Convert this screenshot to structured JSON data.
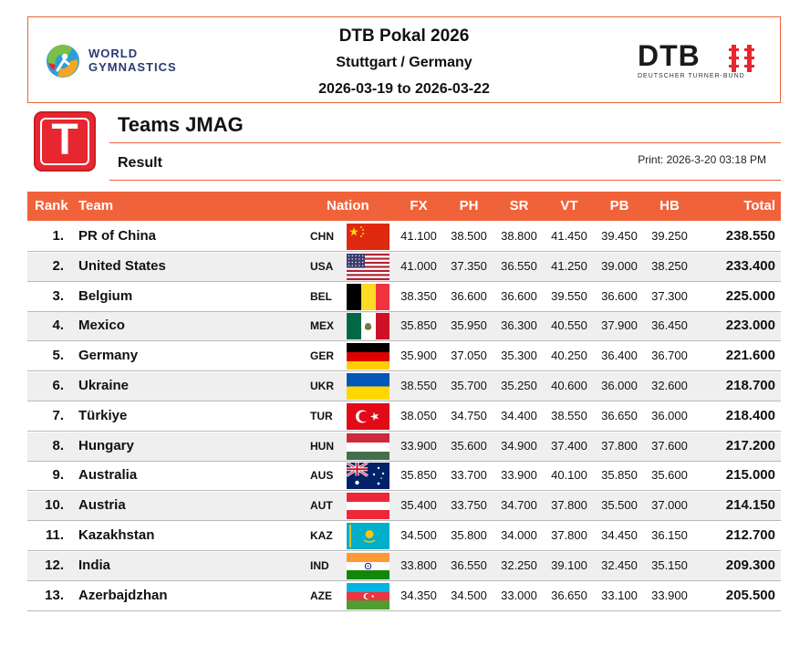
{
  "header": {
    "organizer_logo_text_line1": "WORLD",
    "organizer_logo_text_line2": "GYMNASTICS",
    "event_name": "DTB Pokal 2026",
    "event_place": "Stuttgart / Germany",
    "event_dates": "2026-03-19 to 2026-03-22",
    "federation_logo_word": "DTB",
    "federation_logo_sub": "DEUTSCHER TURNER-BUND"
  },
  "section": {
    "badge_letter": "T",
    "title": "Teams JMAG",
    "subtitle": "Result",
    "print_info": "Print: 2026-3-20 03:18 PM"
  },
  "colors": {
    "accent": "#f0633a",
    "badge_red": "#e8262f",
    "row_alt": "#efefef"
  },
  "table": {
    "columns": {
      "rank": "Rank",
      "team": "Team",
      "nation": "Nation",
      "fx": "FX",
      "ph": "PH",
      "sr": "SR",
      "vt": "VT",
      "pb": "PB",
      "hb": "HB",
      "total": "Total"
    },
    "rows": [
      {
        "rank": "1.",
        "team": "PR of China",
        "noc": "CHN",
        "flag": "china-flag",
        "fx": "41.100",
        "ph": "38.500",
        "sr": "38.800",
        "vt": "41.450",
        "pb": "39.450",
        "hb": "39.250",
        "total": "238.550"
      },
      {
        "rank": "2.",
        "team": "United States",
        "noc": "USA",
        "flag": "usa-flag",
        "fx": "41.000",
        "ph": "37.350",
        "sr": "36.550",
        "vt": "41.250",
        "pb": "39.000",
        "hb": "38.250",
        "total": "233.400"
      },
      {
        "rank": "3.",
        "team": "Belgium",
        "noc": "BEL",
        "flag": "belgium-flag",
        "fx": "38.350",
        "ph": "36.600",
        "sr": "36.600",
        "vt": "39.550",
        "pb": "36.600",
        "hb": "37.300",
        "total": "225.000"
      },
      {
        "rank": "4.",
        "team": "Mexico",
        "noc": "MEX",
        "flag": "mexico-flag",
        "fx": "35.850",
        "ph": "35.950",
        "sr": "36.300",
        "vt": "40.550",
        "pb": "37.900",
        "hb": "36.450",
        "total": "223.000"
      },
      {
        "rank": "5.",
        "team": "Germany",
        "noc": "GER",
        "flag": "germany-flag",
        "fx": "35.900",
        "ph": "37.050",
        "sr": "35.300",
        "vt": "40.250",
        "pb": "36.400",
        "hb": "36.700",
        "total": "221.600"
      },
      {
        "rank": "6.",
        "team": "Ukraine",
        "noc": "UKR",
        "flag": "ukraine-flag",
        "fx": "38.550",
        "ph": "35.700",
        "sr": "35.250",
        "vt": "40.600",
        "pb": "36.000",
        "hb": "32.600",
        "total": "218.700"
      },
      {
        "rank": "7.",
        "team": "Türkiye",
        "noc": "TUR",
        "flag": "turkiye-flag",
        "fx": "38.050",
        "ph": "34.750",
        "sr": "34.400",
        "vt": "38.550",
        "pb": "36.650",
        "hb": "36.000",
        "total": "218.400"
      },
      {
        "rank": "8.",
        "team": "Hungary",
        "noc": "HUN",
        "flag": "hungary-flag",
        "fx": "33.900",
        "ph": "35.600",
        "sr": "34.900",
        "vt": "37.400",
        "pb": "37.800",
        "hb": "37.600",
        "total": "217.200"
      },
      {
        "rank": "9.",
        "team": "Australia",
        "noc": "AUS",
        "flag": "australia-flag",
        "fx": "35.850",
        "ph": "33.700",
        "sr": "33.900",
        "vt": "40.100",
        "pb": "35.850",
        "hb": "35.600",
        "total": "215.000"
      },
      {
        "rank": "10.",
        "team": "Austria",
        "noc": "AUT",
        "flag": "austria-flag",
        "fx": "35.400",
        "ph": "33.750",
        "sr": "34.700",
        "vt": "37.800",
        "pb": "35.500",
        "hb": "37.000",
        "total": "214.150"
      },
      {
        "rank": "11.",
        "team": "Kazakhstan",
        "noc": "KAZ",
        "flag": "kazakhstan-flag",
        "fx": "34.500",
        "ph": "35.800",
        "sr": "34.000",
        "vt": "37.800",
        "pb": "34.450",
        "hb": "36.150",
        "total": "212.700"
      },
      {
        "rank": "12.",
        "team": "India",
        "noc": "IND",
        "flag": "india-flag",
        "fx": "33.800",
        "ph": "36.550",
        "sr": "32.250",
        "vt": "39.100",
        "pb": "32.450",
        "hb": "35.150",
        "total": "209.300"
      },
      {
        "rank": "13.",
        "team": "Azerbajdzhan",
        "noc": "AZE",
        "flag": "azerbaijan-flag",
        "fx": "34.350",
        "ph": "34.500",
        "sr": "33.000",
        "vt": "36.650",
        "pb": "33.100",
        "hb": "33.900",
        "total": "205.500"
      }
    ]
  }
}
